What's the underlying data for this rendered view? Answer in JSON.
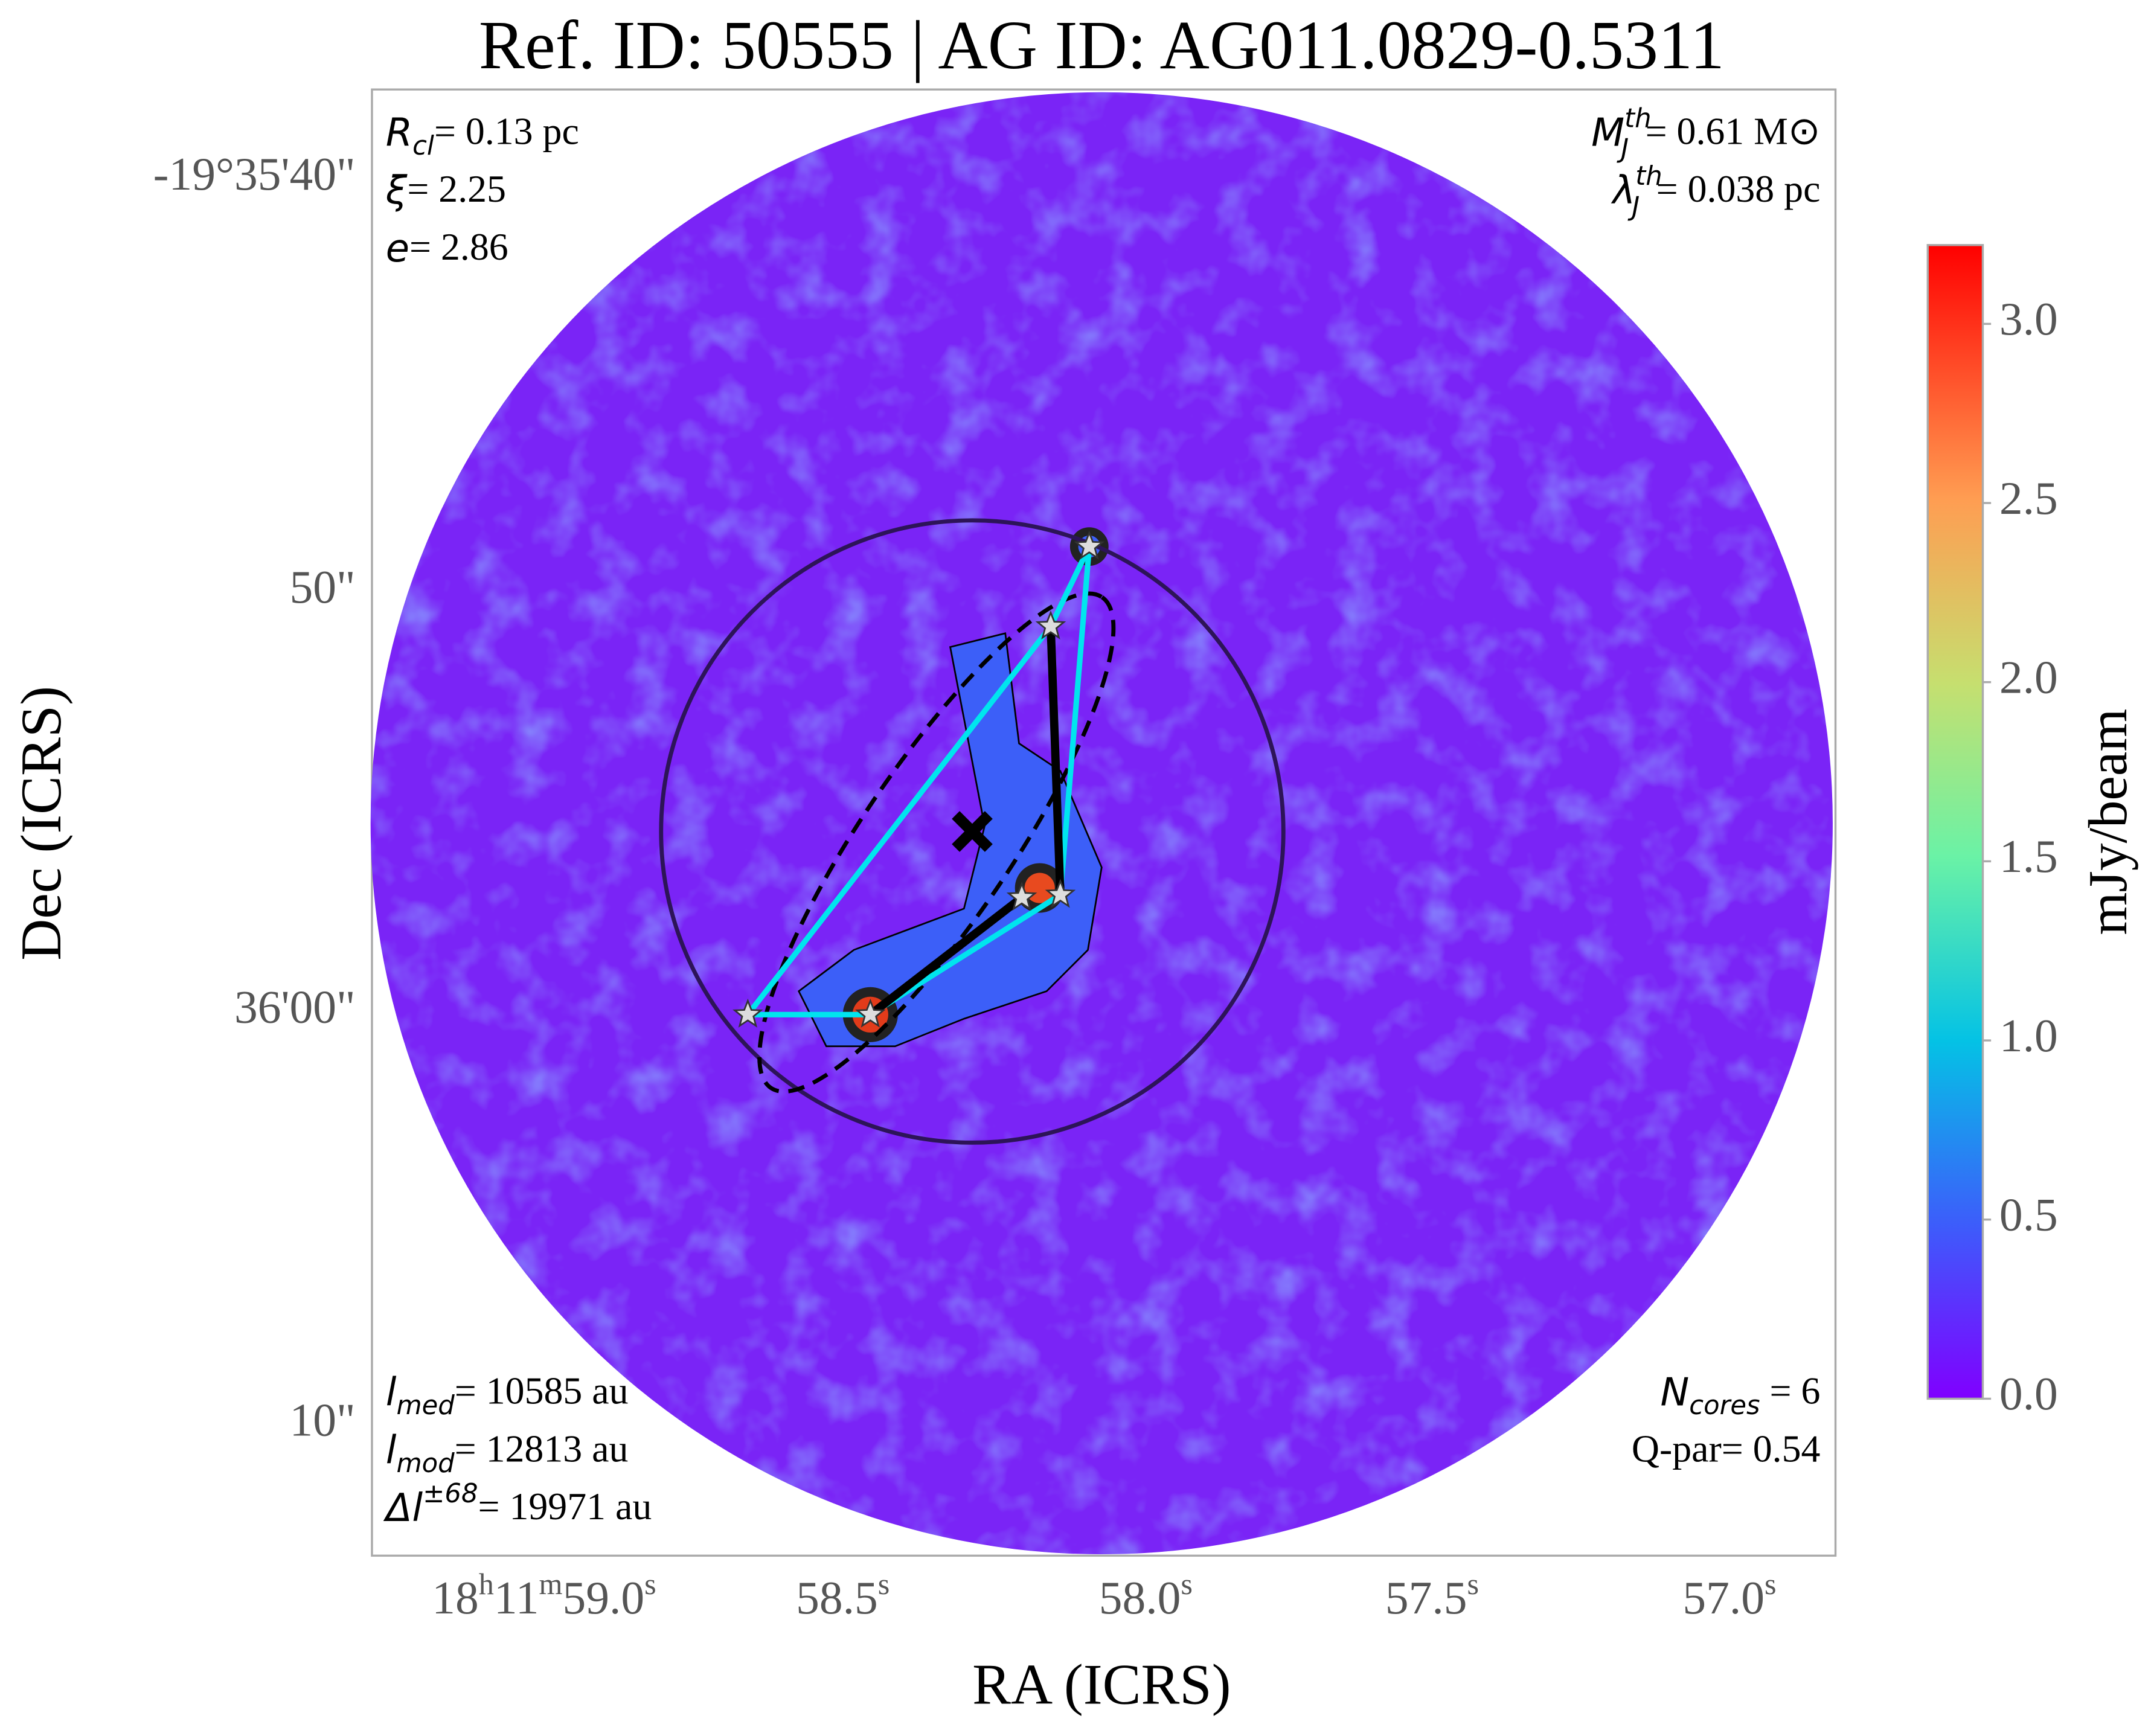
{
  "title": "Ref. ID: 50555 | AG ID: AG011.0829-0.5311",
  "x_axis": {
    "label": "RA (ICRS)",
    "ticks": [
      [
        "18",
        "h",
        "11",
        "m",
        "59.0",
        "s"
      ],
      [
        "58.5",
        "s"
      ],
      [
        "58.0",
        "s"
      ],
      [
        "57.5",
        "s"
      ],
      [
        "57.0",
        "s"
      ]
    ]
  },
  "y_axis": {
    "label": "Dec (ICRS)",
    "ticks": [
      "-19°35'40\"",
      "50\"",
      "36'00\"",
      "10\""
    ]
  },
  "annotations": {
    "top_left": [
      {
        "symbol": "R",
        "sub": "cl",
        "text": "= 0.13 pc"
      },
      {
        "symbol": "ξ",
        "text": "= 2.25"
      },
      {
        "symbol": "e",
        "text": "= 2.86"
      }
    ],
    "top_right": [
      {
        "symbol": "M",
        "sup": "th",
        "sub": "J",
        "text": "= 0.61 M⊙"
      },
      {
        "symbol": "λ",
        "sup": "th",
        "sub": "J",
        "text": "= 0.038 pc"
      }
    ],
    "bottom_left": [
      {
        "symbol": "l",
        "sub": "med",
        "text": "= 10585 au"
      },
      {
        "symbol": "l",
        "sub": "mod",
        "text": "= 12813 au"
      },
      {
        "symbol": "Δl",
        "sup": "±68",
        "text": "= 19971 au"
      }
    ],
    "bottom_right": [
      {
        "symbol": "N",
        "sub": "cores",
        "text": " = 6"
      },
      {
        "text": "Q-par= 0.54"
      }
    ]
  },
  "colorbar": {
    "label": "mJy/beam",
    "lim": [
      0,
      3.22
    ],
    "ticks": [
      {
        "value": 0,
        "label": "0.0"
      },
      {
        "value": 0.5,
        "label": "0.5"
      },
      {
        "value": 1,
        "label": "1.0"
      },
      {
        "value": 1.5,
        "label": "1.5"
      },
      {
        "value": 2,
        "label": "2.0"
      },
      {
        "value": 2.5,
        "label": "2.5"
      },
      {
        "value": 3,
        "label": "3.0"
      }
    ]
  }
}
